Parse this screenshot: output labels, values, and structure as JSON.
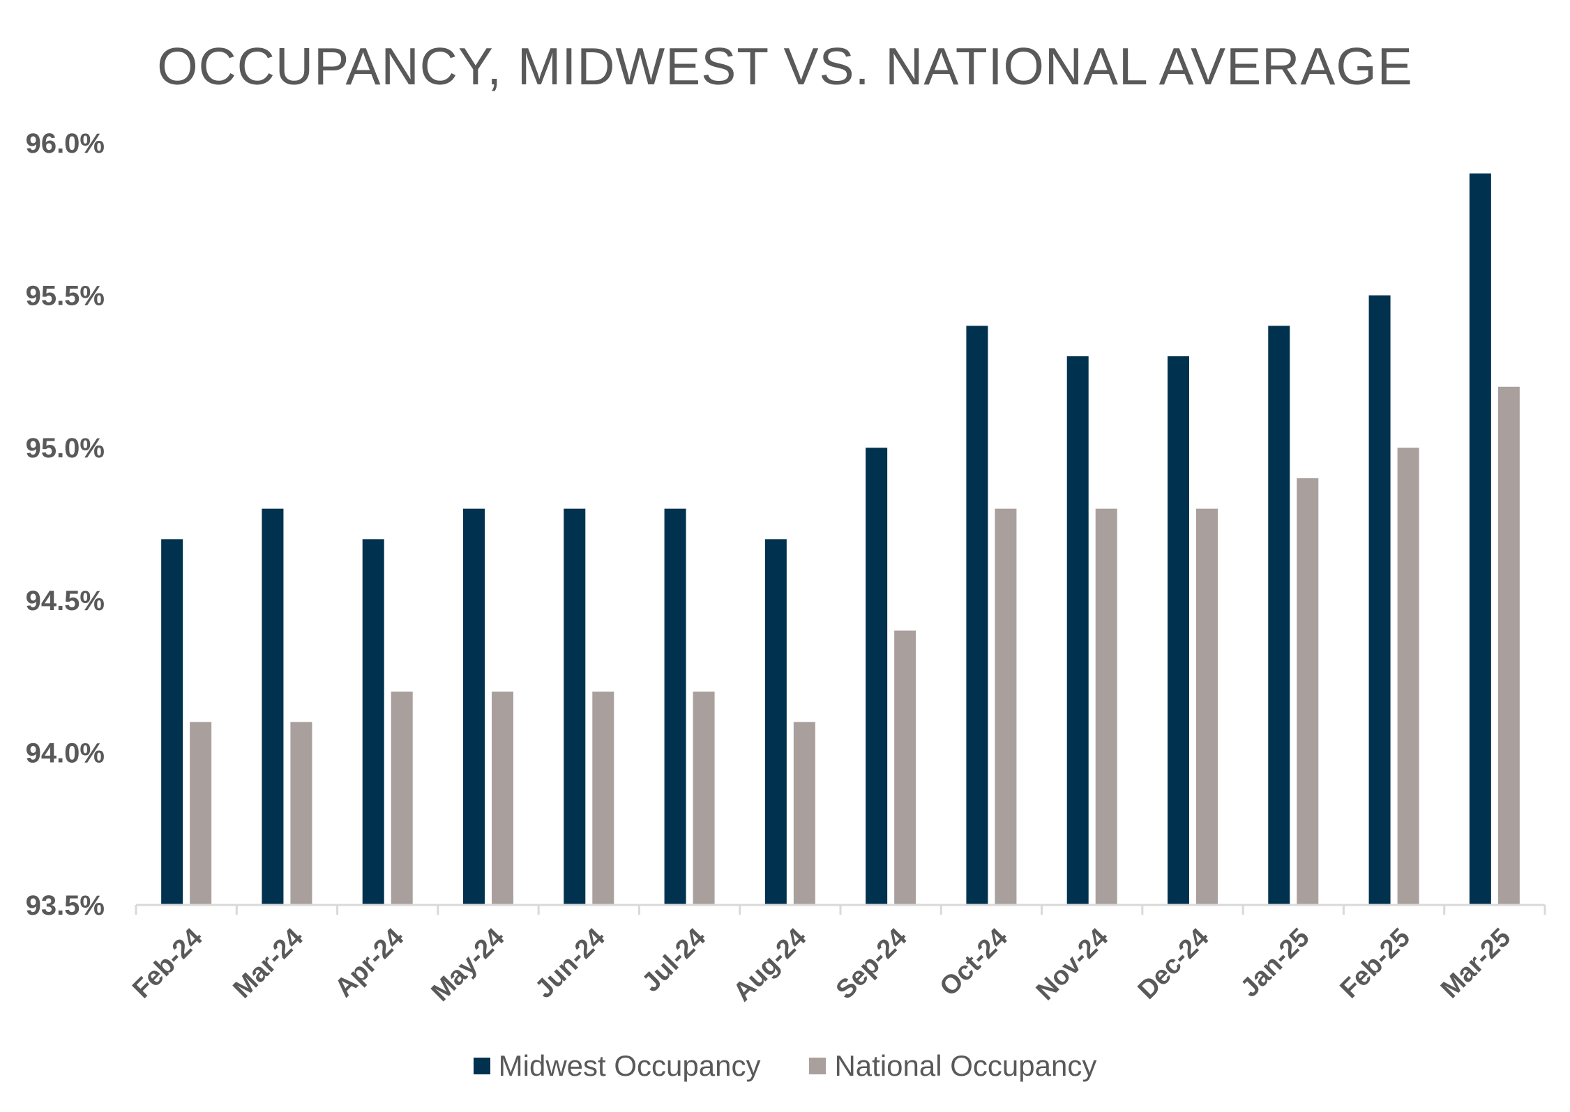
{
  "chart_data": {
    "type": "bar",
    "title": "OCCUPANCY, MIDWEST VS. NATIONAL AVERAGE",
    "xlabel": "",
    "ylabel": "",
    "ylim": [
      93.5,
      96.0
    ],
    "yticks": [
      93.5,
      94.0,
      94.5,
      95.0,
      95.5,
      96.0
    ],
    "ytick_labels": [
      "93.5%",
      "94.0%",
      "94.5%",
      "95.0%",
      "95.5%",
      "96.0%"
    ],
    "categories": [
      "Feb-24",
      "Mar-24",
      "Apr-24",
      "May-24",
      "Jun-24",
      "Jul-24",
      "Aug-24",
      "Sep-24",
      "Oct-24",
      "Nov-24",
      "Dec-24",
      "Jan-25",
      "Feb-25",
      "Mar-25"
    ],
    "series": [
      {
        "name": "Midwest Occupancy",
        "color": "#00324F",
        "values": [
          94.7,
          94.8,
          94.7,
          94.8,
          94.8,
          94.8,
          94.7,
          95.0,
          95.4,
          95.3,
          95.3,
          95.4,
          95.5,
          95.9
        ]
      },
      {
        "name": "National Occupancy",
        "color": "#A9A09D",
        "values": [
          94.1,
          94.1,
          94.2,
          94.2,
          94.2,
          94.2,
          94.1,
          94.4,
          94.8,
          94.8,
          94.8,
          94.9,
          95.0,
          95.2
        ]
      }
    ],
    "grid": false,
    "legend_position": "bottom"
  },
  "colors": {
    "axis": "#D9D9D9",
    "text": "#595959"
  }
}
